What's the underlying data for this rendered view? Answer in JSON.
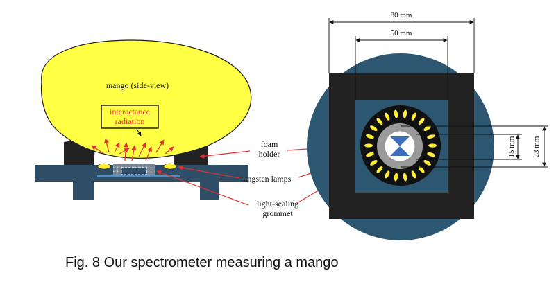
{
  "labels": {
    "mango": "mango (side-view)",
    "radiation_line1": "interactance",
    "radiation_line2": "radiation",
    "foam_line1": "foam",
    "foam_line2": "holder",
    "lamps": "tungsten lamps",
    "grommet_line1": "light-sealing",
    "grommet_line2": "grommet"
  },
  "dimensions": {
    "outer_width": "80 mm",
    "inner_width": "50 mm",
    "inner_ring": "15 mm",
    "outer_ring": "23 mm"
  },
  "caption": "Fig. 8 Our spectrometer measuring a mango",
  "colors": {
    "mango": "#ffff44",
    "housing": "#2e4e68",
    "disc": "#2d5670",
    "foam": "#222222",
    "arrow": "#e03030",
    "lamp": "#ffee33",
    "grommet": "#9a9a9a",
    "sensor": "#3a6fc0"
  }
}
